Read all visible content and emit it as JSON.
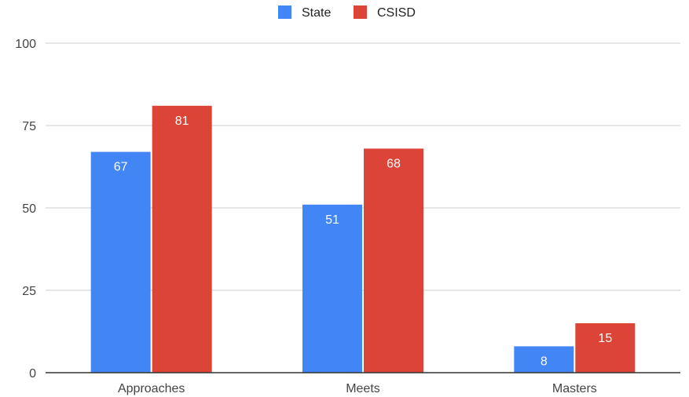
{
  "chart_data": {
    "type": "bar",
    "categories": [
      "Approaches",
      "Meets",
      "Masters"
    ],
    "series": [
      {
        "name": "State",
        "values": [
          67,
          51,
          8
        ],
        "color": "#4285f4"
      },
      {
        "name": "CSISD",
        "values": [
          81,
          68,
          15
        ],
        "color": "#db4437"
      }
    ],
    "ylim": [
      0,
      100
    ],
    "yticks": [
      0,
      25,
      50,
      75,
      100
    ],
    "grid": true,
    "legend_position": "top-center",
    "data_labels": true
  }
}
